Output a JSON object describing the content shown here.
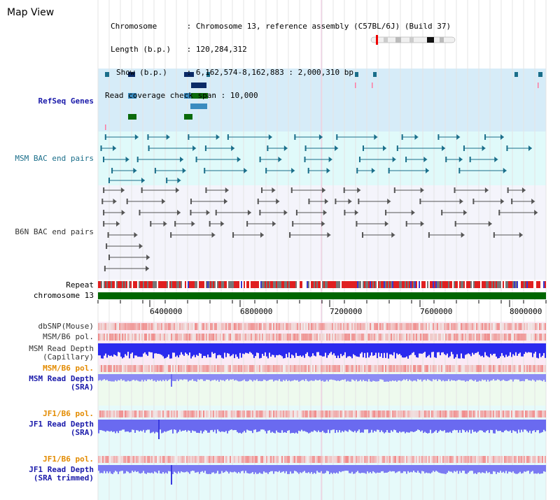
{
  "app": {
    "title": "Map View"
  },
  "info": {
    "chromosome_key": "Chromosome",
    "chromosome_val": "Chromosome 13, reference assembly (C57BL/6J) (Build 37)",
    "length_key": "Length (b.p.)",
    "length_val": "120,284,312",
    "show_key": "Show (b.p.)",
    "show_val": "6,162,574-8,162,883 : 2,000,310 bp",
    "span_key": "Read coverage check span",
    "span_val": "10,000"
  },
  "tracks": {
    "refseq": "RefSeq Genes",
    "msm_bac": "MSM BAC end pairs",
    "b6n_bac": "B6N BAC end pairs",
    "repeat": "Repeat",
    "chromosome": "chromosome 13",
    "dbsnp": "dbSNP(Mouse)",
    "msm_b6_pol": "MSM/B6 pol.",
    "msm_depth_cap_1": "MSM Read Depth",
    "msm_depth_cap_2": "(Capillary)",
    "msm_b6_pol_2": "MSM/B6 pol.",
    "msm_depth_sra_1": "MSM Read Depth",
    "msm_depth_sra_2": "(SRA)",
    "jf1_b6_pol": "JF1/B6 pol.",
    "jf1_depth_sra_1": "JF1 Read Depth",
    "jf1_depth_sra_2": "(SRA)",
    "jf1_b6_pol_2": "JF1/B6 pol.",
    "jf1_depth_trim_1": "JF1 Read Depth",
    "jf1_depth_trim_2": "(SRA trimmed)"
  },
  "axis": {
    "ticks": [
      "6400000",
      "6800000",
      "7200000",
      "7600000",
      "8000000"
    ]
  },
  "colors": {
    "refseq_bg": "#d6ecf8",
    "msm_bg": "#e0fafa",
    "b6n_bg": "#f4f4fb",
    "chromosome_bar": "#006600",
    "teal": "#1a6e8a",
    "dark_navy": "#0a2a66",
    "green": "#0a6a0a",
    "orange_label": "#e38b00",
    "blue_label": "#1a1aaa",
    "depth_blue": "#2a2aee"
  }
}
